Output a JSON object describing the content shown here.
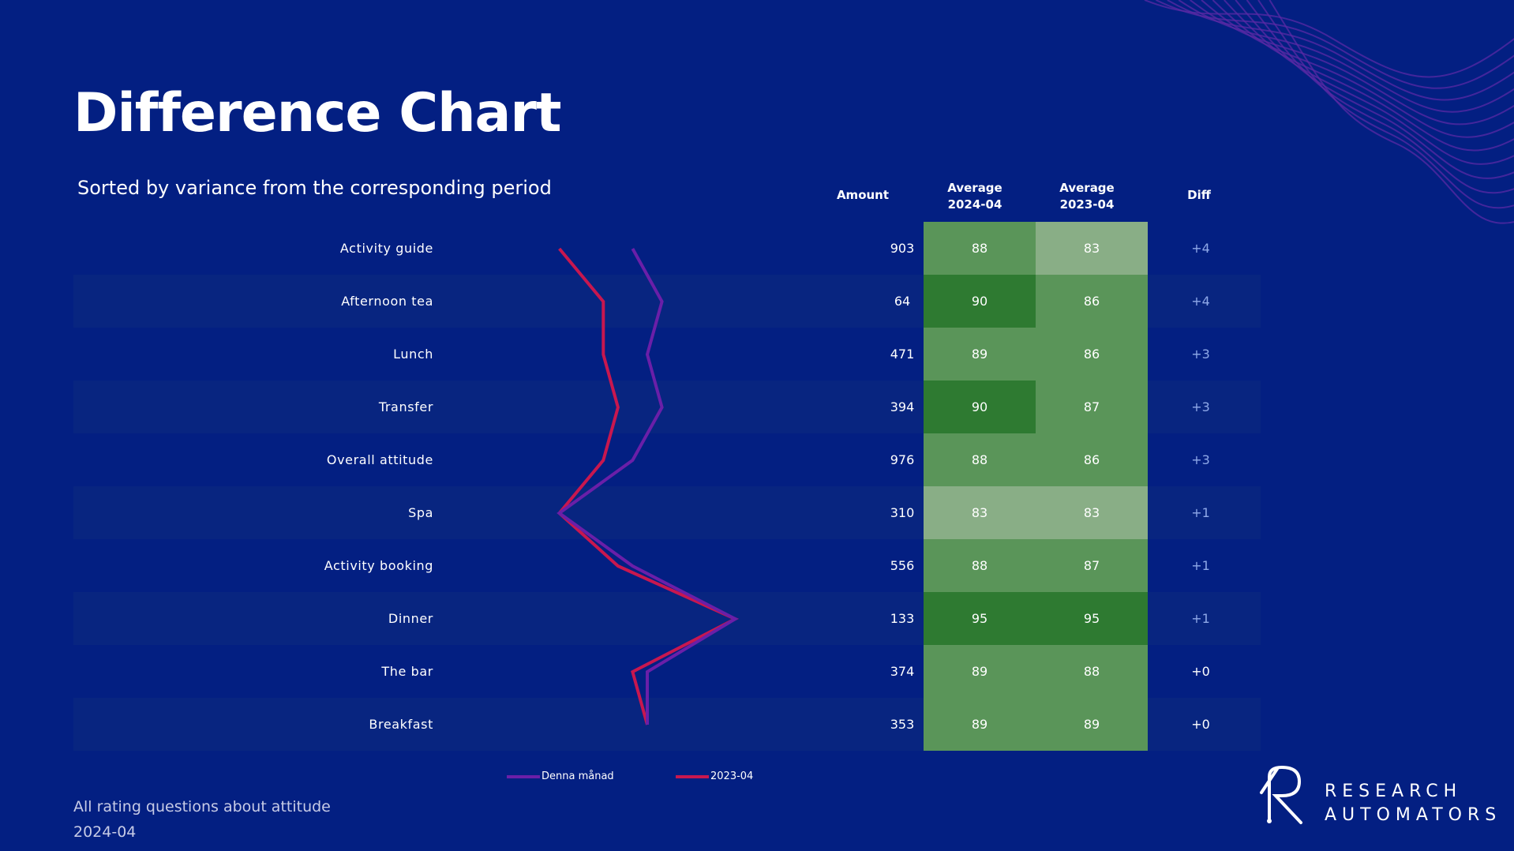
{
  "title": "Difference Chart",
  "subtitle": "Sorted by variance from the corresponding period",
  "columns": {
    "amount": "Amount",
    "avg_current_line1": "Average",
    "avg_current_line2": "2024-04",
    "avg_previous_line1": "Average",
    "avg_previous_line2": "2023-04",
    "diff": "Diff"
  },
  "chart_data": {
    "type": "table",
    "series": [
      {
        "name": "Denna månad",
        "color": "#6a1fa8"
      },
      {
        "name": "2023-04",
        "color": "#c8174f"
      }
    ],
    "rows": [
      {
        "label": "Activity guide",
        "amount": "903",
        "avg_current": 88,
        "avg_previous": 83,
        "diff": "+4"
      },
      {
        "label": "Afternoon tea",
        "amount": "64",
        "avg_current": 90,
        "avg_previous": 86,
        "diff": "+4"
      },
      {
        "label": "Lunch",
        "amount": "471",
        "avg_current": 89,
        "avg_previous": 86,
        "diff": "+3"
      },
      {
        "label": "Transfer",
        "amount": "394",
        "avg_current": 90,
        "avg_previous": 87,
        "diff": "+3"
      },
      {
        "label": "Overall attitude",
        "amount": "976",
        "avg_current": 88,
        "avg_previous": 86,
        "diff": "+3"
      },
      {
        "label": "Spa",
        "amount": "310",
        "avg_current": 83,
        "avg_previous": 83,
        "diff": "+1"
      },
      {
        "label": "Activity booking",
        "amount": "556",
        "avg_current": 88,
        "avg_previous": 87,
        "diff": "+1"
      },
      {
        "label": "Dinner",
        "amount": "133",
        "avg_current": 95,
        "avg_previous": 95,
        "diff": "+1"
      },
      {
        "label": "The bar",
        "amount": "374",
        "avg_current": 89,
        "avg_previous": 88,
        "diff": "+0"
      },
      {
        "label": "Breakfast",
        "amount": "353",
        "avg_current": 89,
        "avg_previous": 89,
        "diff": "+0"
      }
    ],
    "colors": {
      "cell_light": "#89ae86",
      "cell_mid": "#5a9559",
      "cell_dark": "#2e7a31",
      "diff_positive": "#8fa9e8",
      "diff_zero": "#ffffff"
    }
  },
  "footer": {
    "line1": "All rating questions about attitude",
    "line2": "2024-04"
  },
  "logo": {
    "line1": "RESEARCH",
    "line2": "AUTOMATORS"
  }
}
